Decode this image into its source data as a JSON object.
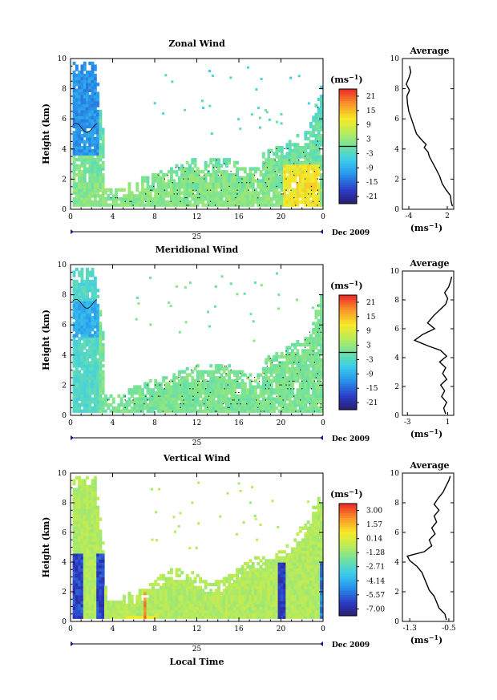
{
  "chart_data": [
    {
      "type": "heatmap",
      "title": "Zonal Wind",
      "ylabel": "Height (km)",
      "xlabel": "",
      "x_ticks": [
        "0",
        "4",
        "8",
        "12",
        "16",
        "20",
        "0"
      ],
      "y_ticks": [
        "0",
        "2",
        "4",
        "6",
        "8",
        "10"
      ],
      "xlim": [
        0,
        24
      ],
      "ylim": [
        0,
        10
      ],
      "date_day": "25",
      "date_label": "Dec 2009",
      "colorbar": {
        "unit": "(ms",
        "unit_sup": "−1",
        "unit_close": ")",
        "ticks": [
          "21",
          "15",
          "9",
          "3",
          "-3",
          "-9",
          "-15",
          "-21"
        ],
        "range": [
          -24,
          24
        ],
        "reference_line": 0
      },
      "profile": {
        "title": "Average",
        "x_ticks": [
          "-4",
          "2"
        ],
        "y_ticks": [
          "0",
          "2",
          "4",
          "6",
          "8",
          "10"
        ],
        "xlim": [
          -5,
          3
        ],
        "xlabel": "(ms",
        "xlabel_sup": "−1",
        "xlabel_close": ")",
        "points": [
          [
            2.8,
            0.2
          ],
          [
            2.6,
            0.5
          ],
          [
            2.5,
            0.9
          ],
          [
            1.8,
            1.3
          ],
          [
            1.2,
            1.7
          ],
          [
            0.8,
            2.2
          ],
          [
            0.2,
            2.7
          ],
          [
            -0.3,
            3.1
          ],
          [
            -0.8,
            3.5
          ],
          [
            -1.0,
            3.8
          ],
          [
            -1.6,
            4.1
          ],
          [
            -1.3,
            4.3
          ],
          [
            -2.0,
            4.6
          ],
          [
            -2.8,
            5.0
          ],
          [
            -3.2,
            5.5
          ],
          [
            -3.6,
            6.0
          ],
          [
            -4.0,
            6.5
          ],
          [
            -4.2,
            7.0
          ],
          [
            -4.3,
            7.5
          ],
          [
            -3.9,
            7.9
          ],
          [
            -4.4,
            8.3
          ],
          [
            -4.0,
            8.7
          ],
          [
            -3.7,
            9.1
          ],
          [
            -3.9,
            9.5
          ]
        ]
      }
    },
    {
      "type": "heatmap",
      "title": "Meridional Wind",
      "ylabel": "Height (km)",
      "xlabel": "",
      "x_ticks": [
        "0",
        "4",
        "8",
        "12",
        "16",
        "20",
        "0"
      ],
      "y_ticks": [
        "0",
        "2",
        "4",
        "6",
        "8",
        "10"
      ],
      "xlim": [
        0,
        24
      ],
      "ylim": [
        0,
        10
      ],
      "date_day": "25",
      "date_label": "Dec 2009",
      "colorbar": {
        "unit": "(ms",
        "unit_sup": "−1",
        "unit_close": ")",
        "ticks": [
          "21",
          "15",
          "9",
          "3",
          "-3",
          "-9",
          "-15",
          "-21"
        ],
        "range": [
          -24,
          24
        ],
        "reference_line": 0
      },
      "profile": {
        "title": "Average",
        "x_ticks": [
          "-3",
          "1"
        ],
        "y_ticks": [
          "0",
          "2",
          "4",
          "6",
          "8",
          "10"
        ],
        "xlim": [
          -3.5,
          1.6
        ],
        "xlabel": "(ms",
        "xlabel_sup": "−1",
        "xlabel_close": ")",
        "points": [
          [
            0.8,
            0.1
          ],
          [
            0.6,
            0.5
          ],
          [
            0.9,
            0.9
          ],
          [
            0.4,
            1.3
          ],
          [
            0.7,
            1.7
          ],
          [
            0.3,
            2.1
          ],
          [
            0.9,
            2.5
          ],
          [
            0.5,
            2.9
          ],
          [
            0.8,
            3.3
          ],
          [
            0.2,
            3.7
          ],
          [
            0.9,
            4.1
          ],
          [
            0.3,
            4.5
          ],
          [
            -0.9,
            4.8
          ],
          [
            -2.3,
            5.2
          ],
          [
            -1.5,
            5.6
          ],
          [
            -0.3,
            6.0
          ],
          [
            -1.0,
            6.4
          ],
          [
            -0.4,
            6.9
          ],
          [
            0.2,
            7.3
          ],
          [
            0.8,
            7.7
          ],
          [
            1.0,
            8.1
          ],
          [
            0.7,
            8.5
          ],
          [
            1.1,
            8.9
          ],
          [
            1.3,
            9.3
          ],
          [
            1.4,
            9.6
          ]
        ]
      }
    },
    {
      "type": "heatmap",
      "title": "Vertical Wind",
      "ylabel": "Height (km)",
      "xlabel": "Local Time",
      "x_ticks": [
        "0",
        "4",
        "8",
        "12",
        "16",
        "20",
        "0"
      ],
      "y_ticks": [
        "0",
        "2",
        "4",
        "6",
        "8",
        "10"
      ],
      "xlim": [
        0,
        24
      ],
      "ylim": [
        0,
        10
      ],
      "date_day": "25",
      "date_label": "Dec 2009",
      "colorbar": {
        "unit": "(ms",
        "unit_sup": "−1",
        "unit_close": ")",
        "ticks": [
          "3.00",
          "1.57",
          "0.14",
          "-1.28",
          "-2.71",
          "-4.14",
          "-5.57",
          "-7.00"
        ],
        "range": [
          -7.7,
          3.7
        ]
      },
      "profile": {
        "title": "Average",
        "x_ticks": [
          "-1.3",
          "-0.5"
        ],
        "y_ticks": [
          "0",
          "2",
          "4",
          "6",
          "8",
          "10"
        ],
        "xlim": [
          -1.45,
          -0.4
        ],
        "xlabel": "(ms",
        "xlabel_sup": "−1",
        "xlabel_close": ")",
        "points": [
          [
            -0.55,
            0.1
          ],
          [
            -0.58,
            0.5
          ],
          [
            -0.7,
            0.9
          ],
          [
            -0.75,
            1.3
          ],
          [
            -0.8,
            1.7
          ],
          [
            -0.9,
            2.1
          ],
          [
            -0.95,
            2.5
          ],
          [
            -1.0,
            2.9
          ],
          [
            -1.05,
            3.3
          ],
          [
            -1.15,
            3.7
          ],
          [
            -1.3,
            4.1
          ],
          [
            -1.35,
            4.4
          ],
          [
            -1.0,
            4.7
          ],
          [
            -0.85,
            5.1
          ],
          [
            -0.9,
            5.5
          ],
          [
            -0.78,
            5.9
          ],
          [
            -0.85,
            6.3
          ],
          [
            -0.75,
            6.7
          ],
          [
            -0.8,
            7.1
          ],
          [
            -0.7,
            7.5
          ],
          [
            -0.8,
            7.9
          ],
          [
            -0.72,
            8.3
          ],
          [
            -0.62,
            8.7
          ],
          [
            -0.56,
            9.1
          ],
          [
            -0.5,
            9.5
          ],
          [
            -0.47,
            9.8
          ]
        ]
      }
    }
  ]
}
